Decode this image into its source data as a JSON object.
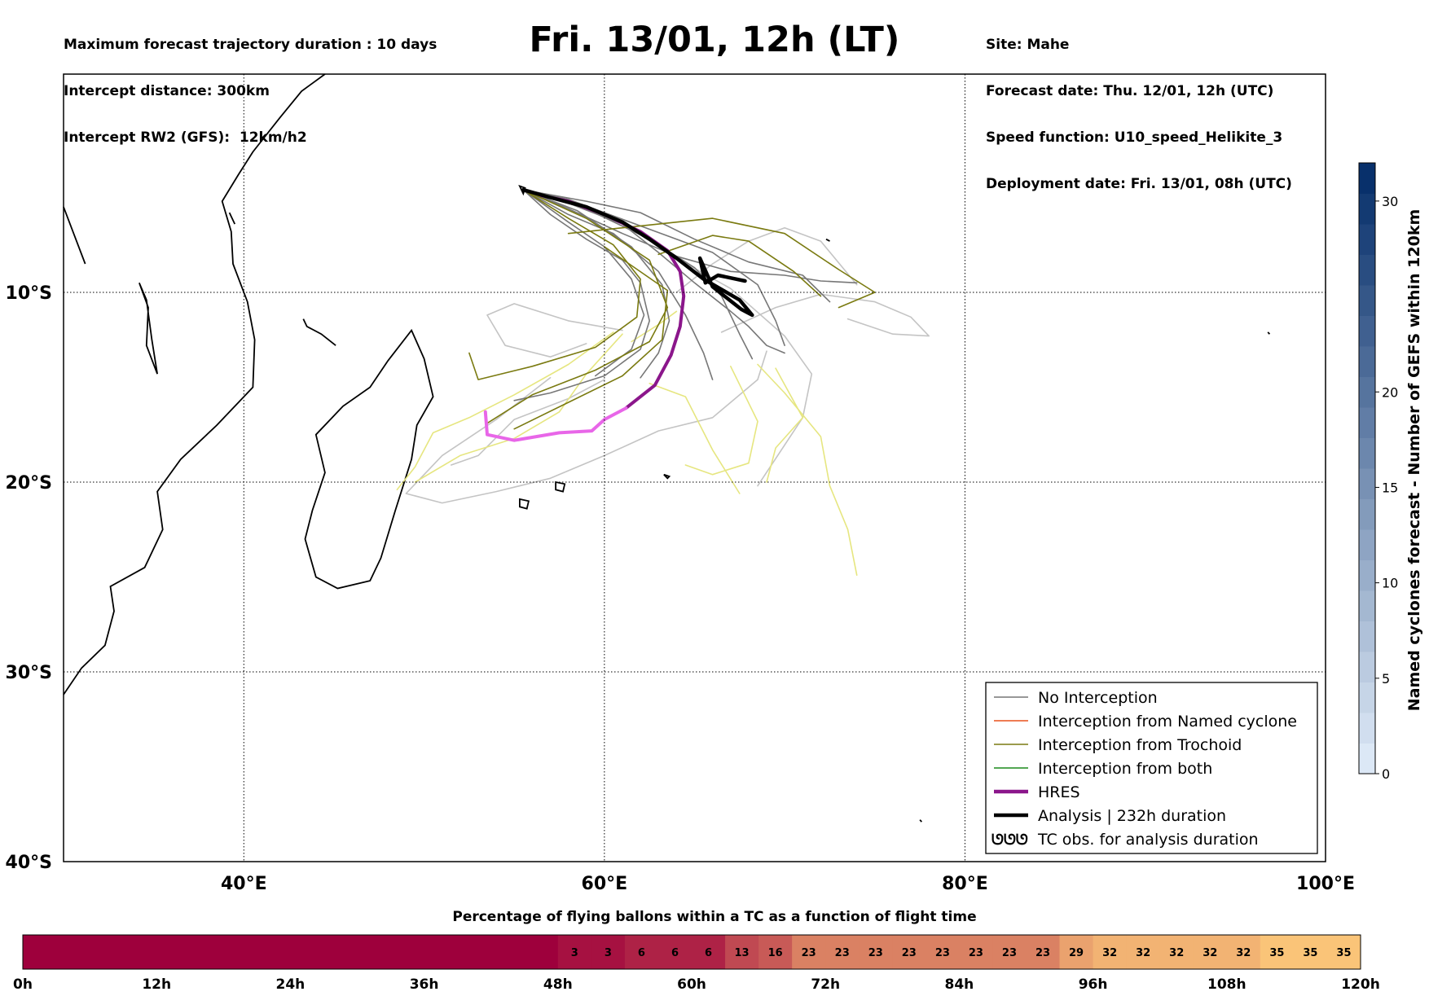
{
  "header": {
    "left_lines": [
      "Maximum forecast trajectory duration : 10 days",
      "Intercept distance: 300km",
      "Intercept RW2 (GFS):  12km/h2"
    ],
    "title": "Fri. 13/01, 12h (LT)",
    "right_lines": [
      "Site: Mahe",
      "Forecast date: Thu. 12/01, 12h (UTC)",
      "Speed function: U10_speed_Helikite_3",
      "Deployment date: Fri. 13/01, 08h (UTC)"
    ]
  },
  "map": {
    "lon_range": [
      30,
      100
    ],
    "lat_range": [
      -40,
      1.5
    ],
    "lon_ticks": [
      {
        "value": 40,
        "label": "40°E"
      },
      {
        "value": 60,
        "label": "60°E"
      },
      {
        "value": 80,
        "label": "80°E"
      },
      {
        "value": 100,
        "label": "100°E"
      }
    ],
    "lat_ticks": [
      {
        "value": -10,
        "label": "10°S"
      },
      {
        "value": -20,
        "label": "20°S"
      },
      {
        "value": -30,
        "label": "30°S"
      },
      {
        "value": -40,
        "label": "40°S"
      }
    ],
    "grid": true
  },
  "legend": {
    "items": [
      {
        "label": "No Interception",
        "color": "#777777",
        "style": "thin"
      },
      {
        "label": "Interception from Named cyclone",
        "color": "#e8501c",
        "style": "thin"
      },
      {
        "label": "Interception from Trochoid",
        "color": "#7a7a10",
        "style": "thin"
      },
      {
        "label": "Interception from both",
        "color": "#1a8a1a",
        "style": "thin"
      },
      {
        "label": "HRES",
        "color": "#8b168b",
        "style": "thick"
      },
      {
        "label": "Analysis | 232h duration",
        "color": "#000000",
        "style": "thick"
      },
      {
        "label": "TC obs. for analysis duration",
        "color": "#000000",
        "style": "symbol",
        "symbol": "ᘎᘎᘎ"
      }
    ]
  },
  "right_colorbar": {
    "label": "Named cyclones forecast - Number of GEFS within 120km",
    "ticks": [
      0,
      5,
      10,
      15,
      20,
      30
    ],
    "range": [
      0,
      32
    ]
  },
  "bottom_colorbar": {
    "title": "Percentage of flying ballons within a TC as a function of flight time",
    "tick_labels": [
      "0h",
      "12h",
      "24h",
      "36h",
      "48h",
      "60h",
      "72h",
      "84h",
      "96h",
      "108h",
      "120h"
    ],
    "cell_values": [
      "",
      "",
      "",
      "",
      "",
      "",
      "",
      "",
      "",
      "",
      "",
      "",
      "",
      "",
      "",
      "",
      "3",
      "3",
      "6",
      "6",
      "6",
      "13",
      "16",
      "23",
      "23",
      "23",
      "23",
      "23",
      "23",
      "23",
      "23",
      "29",
      "32",
      "32",
      "32",
      "32",
      "32",
      "35",
      "35",
      "35"
    ]
  },
  "chart_data": {
    "type": "line",
    "title": "Fri. 13/01, 12h (LT)",
    "xlabel": "",
    "ylabel": "",
    "xlim": [
      30,
      100
    ],
    "ylim": [
      -40,
      1.5
    ],
    "series": [
      {
        "name": "Analysis | 232h duration",
        "color": "#000000",
        "points": [
          [
            55.5,
            -4.6
          ],
          [
            57,
            -5.0
          ],
          [
            59,
            -5.5
          ],
          [
            61,
            -6.3
          ],
          [
            62.5,
            -7.2
          ],
          [
            64,
            -8.2
          ],
          [
            65.5,
            -9.3
          ],
          [
            67.5,
            -10.4
          ],
          [
            68.2,
            -11.2
          ],
          [
            67.6,
            -10.9
          ],
          [
            66,
            -9.7
          ],
          [
            65.3,
            -8.2
          ],
          [
            65.6,
            -9.5
          ],
          [
            66.3,
            -9.1
          ],
          [
            67.8,
            -9.4
          ]
        ]
      },
      {
        "name": "HRES",
        "color": "#8b168b",
        "points": [
          [
            56.5,
            -4.9
          ],
          [
            58,
            -5.2
          ],
          [
            60,
            -5.9
          ],
          [
            62,
            -6.8
          ],
          [
            63.5,
            -7.8
          ],
          [
            64.2,
            -8.9
          ],
          [
            64.4,
            -10.2
          ],
          [
            64.2,
            -11.8
          ],
          [
            63.7,
            -13.3
          ],
          [
            62.8,
            -14.9
          ],
          [
            61.2,
            -16.1
          ],
          [
            60,
            -16.7
          ],
          [
            59.3,
            -17.3
          ],
          [
            57.5,
            -17.4
          ],
          [
            55,
            -17.8
          ],
          [
            53.5,
            -17.5
          ],
          [
            53.4,
            -16.3
          ]
        ]
      },
      {
        "name": "No Interception",
        "color": "#777777",
        "tracks": [
          [
            [
              55.5,
              -4.6
            ],
            [
              58,
              -5.3
            ],
            [
              61,
              -6.4
            ],
            [
              63,
              -7.9
            ],
            [
              65,
              -9.5
            ],
            [
              67,
              -11
            ],
            [
              68,
              -11.8
            ],
            [
              69,
              -12.8
            ],
            [
              70,
              -13.2
            ]
          ],
          [
            [
              55.5,
              -4.6
            ],
            [
              58,
              -5.6
            ],
            [
              61,
              -6.9
            ],
            [
              64,
              -8.1
            ],
            [
              67,
              -8.9
            ],
            [
              70,
              -9.1
            ],
            [
              72,
              -9.4
            ],
            [
              74,
              -9.5
            ]
          ],
          [
            [
              55.5,
              -4.6
            ],
            [
              59,
              -5.2
            ],
            [
              62,
              -5.8
            ],
            [
              65,
              -7.2
            ],
            [
              68,
              -8.4
            ],
            [
              71,
              -9.1
            ],
            [
              72.5,
              -10.5
            ]
          ],
          [
            [
              55.5,
              -4.6
            ],
            [
              57,
              -5.9
            ],
            [
              59,
              -7.2
            ],
            [
              61,
              -8.3
            ],
            [
              62,
              -9.5
            ],
            [
              62.5,
              -11.5
            ],
            [
              62,
              -13
            ],
            [
              60,
              -14.4
            ],
            [
              57,
              -15.3
            ],
            [
              55,
              -15.7
            ]
          ],
          [
            [
              55.5,
              -4.6
            ],
            [
              58,
              -6.3
            ],
            [
              60,
              -7.6
            ],
            [
              61.5,
              -9.3
            ],
            [
              62.2,
              -11.2
            ],
            [
              61.5,
              -13
            ],
            [
              59.5,
              -14.4
            ]
          ],
          [
            [
              55.5,
              -4.6
            ],
            [
              58.5,
              -5.7
            ],
            [
              61.5,
              -7.6
            ],
            [
              63.2,
              -9.6
            ],
            [
              63.6,
              -11.5
            ],
            [
              63,
              -13.2
            ],
            [
              62,
              -14.5
            ]
          ],
          [
            [
              55.5,
              -4.6
            ],
            [
              59,
              -5.6
            ],
            [
              62.5,
              -7.2
            ],
            [
              65,
              -8.7
            ],
            [
              66.5,
              -10.2
            ],
            [
              67.5,
              -12.2
            ],
            [
              68.2,
              -13.5
            ]
          ],
          [
            [
              55.5,
              -4.6
            ],
            [
              58,
              -5.9
            ],
            [
              60.5,
              -6.9
            ],
            [
              63,
              -8.9
            ],
            [
              64.5,
              -11.2
            ],
            [
              65.5,
              -13.2
            ],
            [
              66,
              -14.6
            ]
          ],
          [
            [
              55.5,
              -4.6
            ],
            [
              58,
              -5.1
            ],
            [
              62,
              -6.5
            ],
            [
              66,
              -7.9
            ],
            [
              68.5,
              -9.6
            ],
            [
              69.5,
              -11.5
            ],
            [
              70,
              -12.8
            ]
          ]
        ]
      },
      {
        "name": "Interception from Trochoid",
        "color": "#7a7a10",
        "tracks": [
          [
            [
              55.5,
              -4.6
            ],
            [
              58,
              -6.1
            ],
            [
              60.5,
              -7.5
            ],
            [
              62,
              -9.3
            ],
            [
              61.8,
              -11.3
            ],
            [
              59.5,
              -12.9
            ],
            [
              56,
              -13.9
            ],
            [
              53,
              -14.6
            ],
            [
              52.5,
              -13.2
            ]
          ],
          [
            [
              55.5,
              -4.6
            ],
            [
              59,
              -6.1
            ],
            [
              62.5,
              -8.3
            ],
            [
              63.5,
              -10.8
            ],
            [
              62.5,
              -12.6
            ],
            [
              59.5,
              -14.1
            ],
            [
              56,
              -15.4
            ],
            [
              53.5,
              -16.9
            ]
          ],
          [
            [
              58,
              -6.9
            ],
            [
              62,
              -6.5
            ],
            [
              66,
              -6.1
            ],
            [
              70,
              -6.9
            ],
            [
              73,
              -8.8
            ],
            [
              75,
              -10
            ],
            [
              73,
              -10.8
            ]
          ],
          [
            [
              60,
              -7.6
            ],
            [
              63.5,
              -9.9
            ],
            [
              63.2,
              -12.5
            ],
            [
              61,
              -14.4
            ],
            [
              58,
              -15.8
            ],
            [
              55,
              -17.2
            ]
          ],
          [
            [
              63,
              -8
            ],
            [
              66,
              -7
            ],
            [
              68,
              -7.3
            ],
            [
              70.5,
              -8.9
            ],
            [
              72,
              -10.2
            ]
          ]
        ]
      },
      {
        "name": "light yellow (unlabelled)",
        "color": "#e6e680",
        "tracks": [
          [
            [
              60.5,
              -12.1
            ],
            [
              58,
              -13.8
            ],
            [
              55,
              -15.4
            ],
            [
              52.5,
              -16.6
            ],
            [
              50.5,
              -17.4
            ],
            [
              49.5,
              -19.2
            ],
            [
              48.5,
              -20.4
            ]
          ],
          [
            [
              61,
              -12.2
            ],
            [
              59,
              -14.3
            ],
            [
              57.5,
              -16.3
            ],
            [
              55,
              -17.7
            ],
            [
              52,
              -18.6
            ],
            [
              49.5,
              -20
            ]
          ],
          [
            [
              68.5,
              -13.8
            ],
            [
              70,
              -15.3
            ],
            [
              72,
              -17.6
            ],
            [
              72.5,
              -20.2
            ],
            [
              73.5,
              -22.5
            ],
            [
              74,
              -24.9
            ]
          ],
          [
            [
              67,
              -13.9
            ],
            [
              68.5,
              -16.8
            ],
            [
              68,
              -19
            ],
            [
              66,
              -19.6
            ],
            [
              64.5,
              -19.1
            ]
          ],
          [
            [
              69.5,
              -14
            ],
            [
              71,
              -16.6
            ],
            [
              69.5,
              -18.2
            ],
            [
              69,
              -20
            ]
          ],
          [
            [
              62.5,
              -14.8
            ],
            [
              64.5,
              -15.5
            ],
            [
              66,
              -18.3
            ],
            [
              67.5,
              -20.6
            ]
          ],
          [
            [
              61.5,
              -12.6
            ],
            [
              63,
              -11.7
            ],
            [
              64,
              -11
            ]
          ]
        ]
      },
      {
        "name": "light grey (unlabelled)",
        "color": "#c4c4c4",
        "tracks": [
          [
            [
              57,
              -14.5
            ],
            [
              54,
              -16.7
            ],
            [
              51,
              -18.6
            ],
            [
              49,
              -20.6
            ],
            [
              51,
              -21.1
            ],
            [
              54,
              -20.5
            ],
            [
              57,
              -19.8
            ],
            [
              60,
              -18.6
            ],
            [
              63,
              -17.3
            ],
            [
              66,
              -16.6
            ],
            [
              68.5,
              -14.6
            ],
            [
              69,
              -13.1
            ]
          ],
          [
            [
              66.5,
              -12.1
            ],
            [
              69.5,
              -10.8
            ],
            [
              72,
              -10.1
            ],
            [
              75,
              -10.5
            ],
            [
              77,
              -11.3
            ],
            [
              78,
              -12.3
            ],
            [
              76,
              -12.2
            ],
            [
              73.5,
              -11.4
            ]
          ],
          [
            [
              61,
              -12
            ],
            [
              58,
              -11.5
            ],
            [
              55,
              -10.6
            ],
            [
              53.5,
              -11.2
            ],
            [
              54.5,
              -12.8
            ],
            [
              57,
              -13.4
            ],
            [
              59,
              -12.7
            ]
          ],
          [
            [
              64,
              -8.2
            ],
            [
              67,
              -9.8
            ],
            [
              70,
              -12.3
            ],
            [
              71.5,
              -14.3
            ],
            [
              71,
              -16.6
            ],
            [
              68.5,
              -20.2
            ]
          ],
          [
            [
              60,
              -14.6
            ],
            [
              58,
              -15.6
            ],
            [
              55,
              -16.7
            ],
            [
              53,
              -18.6
            ],
            [
              51.5,
              -19.1
            ]
          ],
          [
            [
              64,
              -10
            ],
            [
              66,
              -8.5
            ],
            [
              68,
              -7.3
            ],
            [
              70,
              -6.6
            ],
            [
              72,
              -7.3
            ],
            [
              74,
              -9.6
            ]
          ]
        ]
      }
    ]
  }
}
